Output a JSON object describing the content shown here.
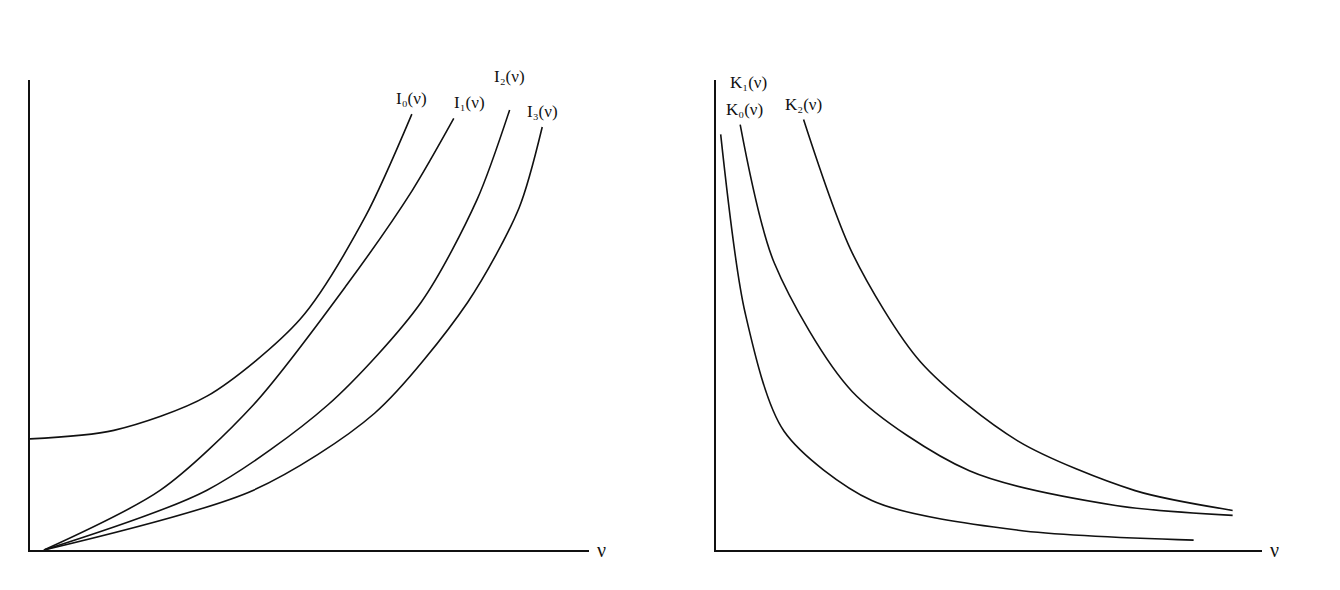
{
  "chart_data": [
    {
      "type": "line",
      "x_label": "ν",
      "xlim": [
        0,
        6
      ],
      "ylim": [
        0,
        11
      ],
      "tick_labels": false,
      "grid": false,
      "series": [
        {
          "name": "I₀(ν)",
          "color": "#111111",
          "x": [
            0,
            0.9,
            1.9,
            2.9,
            3.6,
            4.1
          ],
          "values": [
            2.6,
            2.8,
            3.6,
            5.4,
            7.8,
            10.2
          ]
        },
        {
          "name": "I₁(ν)",
          "color": "#111111",
          "x": [
            0.15,
            1.4,
            2.4,
            3.4,
            4.1,
            4.55
          ],
          "values": [
            0,
            1.4,
            3.4,
            6.2,
            8.4,
            10.1
          ]
        },
        {
          "name": "I₂(ν)",
          "color": "#111111",
          "x": [
            0.15,
            1.9,
            3.2,
            4.2,
            4.8,
            5.15
          ],
          "values": [
            0,
            1.4,
            3.4,
            5.8,
            8.2,
            10.3
          ]
        },
        {
          "name": "I₃(ν)",
          "color": "#111111",
          "x": [
            0.15,
            2.4,
            3.7,
            4.7,
            5.25,
            5.5
          ],
          "values": [
            0,
            1.4,
            3.2,
            5.8,
            8.0,
            9.9
          ]
        }
      ]
    },
    {
      "type": "line",
      "x_label": "ν",
      "xlim": [
        0,
        5.6
      ],
      "ylim": [
        0,
        9.5
      ],
      "tick_labels": false,
      "grid": false,
      "series": [
        {
          "name": "K₀(ν)",
          "color": "#111111",
          "x": [
            0.05,
            0.3,
            0.7,
            1.6,
            3.1,
            4.9
          ],
          "values": [
            8.4,
            4.8,
            2.4,
            1.0,
            0.4,
            0.2
          ]
        },
        {
          "name": "K₁(ν)",
          "color": "#111111",
          "x": [
            0.25,
            0.6,
            1.4,
            2.6,
            4.1,
            5.3
          ],
          "values": [
            8.6,
            5.8,
            3.2,
            1.6,
            0.9,
            0.7
          ]
        },
        {
          "name": "K₂(ν)",
          "color": "#111111",
          "x": [
            0.9,
            1.4,
            2.1,
            3.1,
            4.3,
            5.3
          ],
          "values": [
            8.7,
            6.0,
            3.8,
            2.2,
            1.2,
            0.8
          ]
        }
      ]
    }
  ]
}
